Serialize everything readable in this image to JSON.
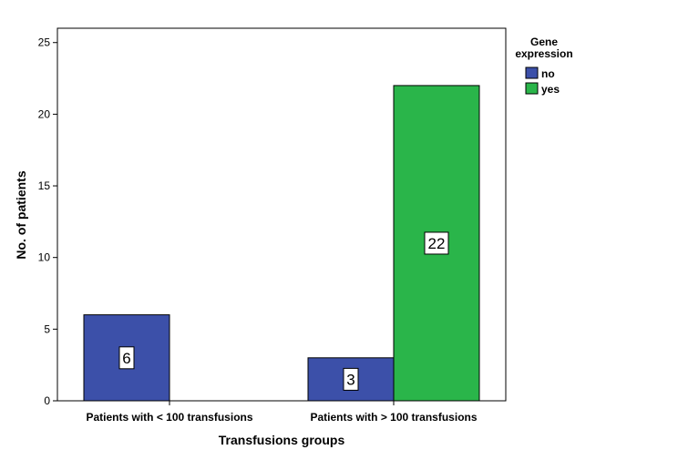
{
  "chart_data": {
    "type": "bar",
    "categories": [
      "Patients with < 100 transfusions",
      "Patients with > 100 transfusions"
    ],
    "series": [
      {
        "name": "no",
        "color": "#3c50a9",
        "values": [
          6,
          3
        ]
      },
      {
        "name": "yes",
        "color": "#2ab54a",
        "values": [
          0,
          22
        ]
      }
    ],
    "xlabel": "Transfusions groups",
    "ylabel": "No. of patients",
    "ylim": [
      0,
      26
    ],
    "yticks": [
      0,
      5,
      10,
      15,
      20,
      25
    ],
    "legend": {
      "title_line1": "Gene",
      "title_line2": "expression",
      "placement": "right"
    },
    "data_labels": true,
    "grid": false
  }
}
